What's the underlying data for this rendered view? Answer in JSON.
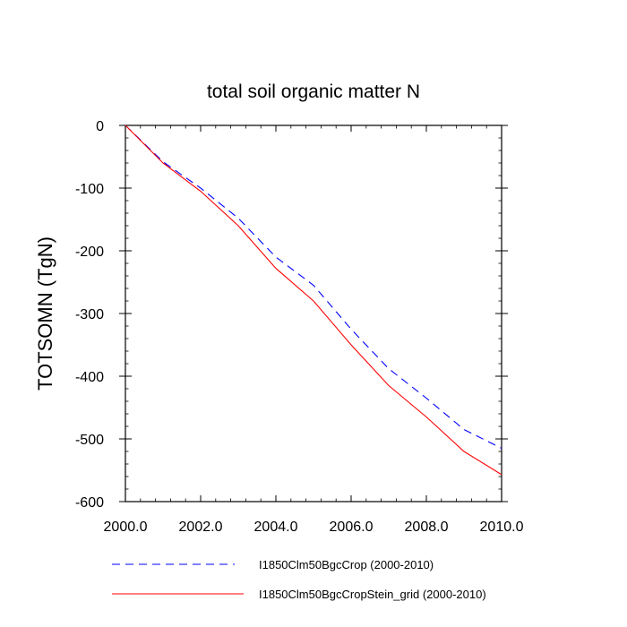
{
  "chart_data": {
    "type": "line",
    "title": "total soil organic matter N",
    "xlabel": "",
    "ylabel": "TOTSOMN  (TgN)",
    "xlim": [
      2000.0,
      2010.0
    ],
    "ylim": [
      -600,
      0
    ],
    "x_ticks": [
      "2000.0",
      "2002.0",
      "2004.0",
      "2006.0",
      "2008.0",
      "2010.0"
    ],
    "y_ticks": [
      "0",
      "-100",
      "-200",
      "-300",
      "-400",
      "-500",
      "-600"
    ],
    "x": [
      2000,
      2001,
      2002,
      2003,
      2004,
      2005,
      2006,
      2007,
      2008,
      2009,
      2010
    ],
    "series": [
      {
        "name": "I1850Clm50BgcCrop (2000-2010)",
        "color": "#0000ff",
        "style": "dashed",
        "values": [
          0,
          -58,
          -100,
          -148,
          -210,
          -255,
          -325,
          -388,
          -435,
          -485,
          -515
        ]
      },
      {
        "name": "I1850Clm50BgcCropStein_grid (2000-2010)",
        "color": "#ff0000",
        "style": "solid",
        "values": [
          0,
          -60,
          -105,
          -160,
          -228,
          -280,
          -350,
          -415,
          -465,
          -520,
          -557
        ]
      }
    ],
    "grid": false,
    "legend_position": "bottom"
  }
}
